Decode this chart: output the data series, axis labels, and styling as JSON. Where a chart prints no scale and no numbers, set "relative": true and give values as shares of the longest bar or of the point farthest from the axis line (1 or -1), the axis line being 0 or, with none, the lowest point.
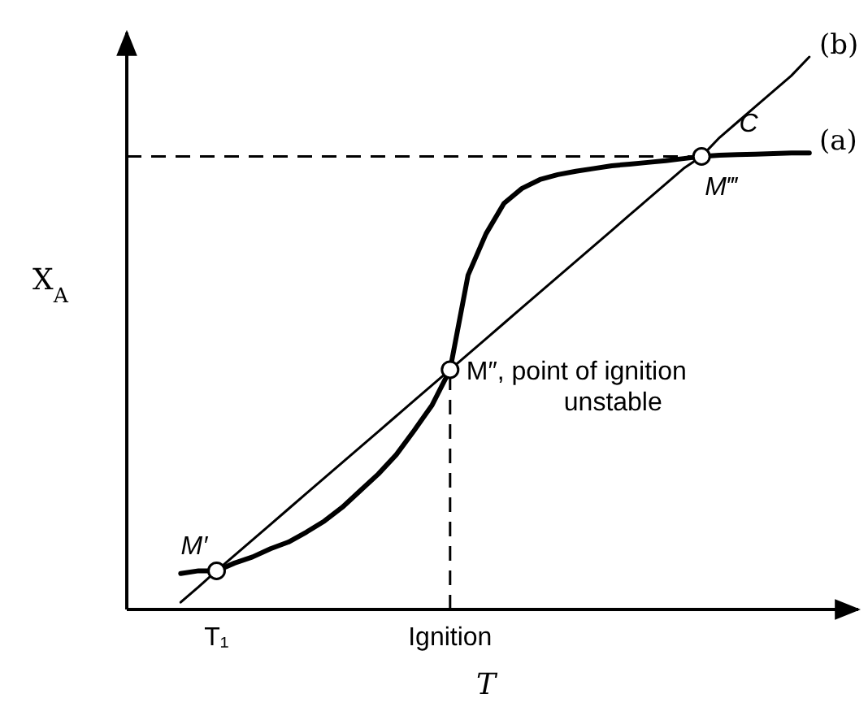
{
  "chart_data": {
    "type": "line",
    "relative": true,
    "xlabel": "T",
    "ylabel": "X$_{A}$",
    "grid": false,
    "legend": false,
    "categories": [
      null,
      null,
      null,
      null,
      null,
      "T₁",
      null,
      null,
      null,
      null,
      null,
      null,
      null,
      null,
      null,
      null,
      null,
      null,
      "Ignition",
      null,
      null,
      null,
      null,
      null,
      null,
      null,
      null,
      null,
      null,
      null,
      null,
      null,
      null,
      null,
      null,
      null,
      null,
      null,
      null,
      null,
      null
    ],
    "series": [
      {
        "name": "(a)",
        "color": "#000000",
        "line_style": "solid",
        "marker": "none",
        "values": [
          null,
          null,
          null,
          0.065,
          0.07,
          0.07,
          0.084,
          0.095,
          0.11,
          0.122,
          0.14,
          0.16,
          0.185,
          0.215,
          0.245,
          0.28,
          0.324,
          0.37,
          0.434,
          0.605,
          0.68,
          0.735,
          0.762,
          0.778,
          0.787,
          0.793,
          0.798,
          0.803,
          0.806,
          0.809,
          0.812,
          0.816,
          0.82,
          0.822,
          0.823,
          0.824,
          0.825,
          0.826,
          0.826,
          null,
          null
        ]
      },
      {
        "name": "(b)",
        "color": "#000000",
        "line_style": "solid",
        "marker": "none",
        "values": [
          null,
          null,
          null,
          0.013,
          0.041,
          0.07,
          0.098,
          0.126,
          0.154,
          0.182,
          0.21,
          0.238,
          0.266,
          0.294,
          0.322,
          0.35,
          0.378,
          0.406,
          0.434,
          0.462,
          0.49,
          0.518,
          0.546,
          0.574,
          0.602,
          0.63,
          0.658,
          0.686,
          0.714,
          0.742,
          0.77,
          0.798,
          0.82,
          0.854,
          0.882,
          0.91,
          0.938,
          0.966,
          1,
          null,
          null
        ]
      },
      {
        "type": "scatter",
        "color": "#000000",
        "marker": "circle",
        "values": [
          null,
          null,
          null,
          null,
          null,
          0.07,
          null,
          null,
          null,
          null,
          null,
          null,
          null,
          null,
          null,
          null,
          null,
          null,
          0.434,
          null,
          null,
          null,
          null,
          null,
          null,
          null,
          null,
          null,
          null,
          null,
          null,
          null,
          0.82,
          null,
          null,
          null,
          null,
          null,
          null,
          null,
          null
        ]
      }
    ],
    "ref_lines": [
      {
        "axis": "y",
        "value": 0.82,
        "line_style": "dashed"
      }
    ],
    "annotations": [
      "M′",
      "M″, point of ignition\nunstable",
      "M‴",
      "C"
    ]
  }
}
